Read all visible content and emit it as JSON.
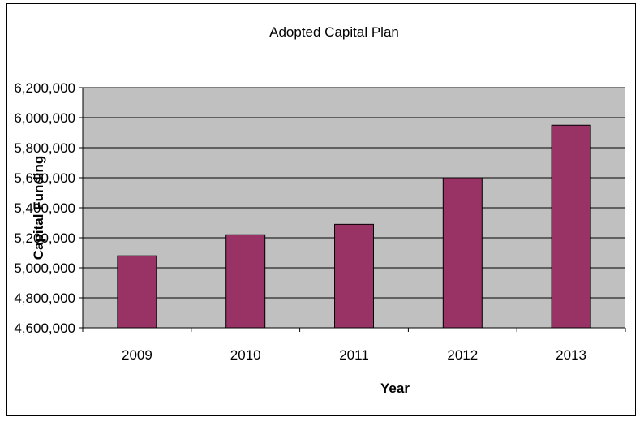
{
  "chart_data": {
    "type": "bar",
    "title": "Adopted Capital Plan",
    "xlabel": "Year",
    "ylabel": "Capital Funding",
    "categories": [
      "2009",
      "2010",
      "2011",
      "2012",
      "2013"
    ],
    "values": [
      5080000,
      5220000,
      5290000,
      5600000,
      5950000
    ],
    "ylim": [
      4600000,
      6200000
    ],
    "yticks": [
      "4,600,000",
      "4,800,000",
      "5,000,000",
      "5,200,000",
      "5,400,000",
      "5,600,000",
      "5,800,000",
      "6,000,000",
      "6,200,000"
    ],
    "ytick_values": [
      4600000,
      4800000,
      5000000,
      5200000,
      5400000,
      5600000,
      5800000,
      6000000,
      6200000
    ],
    "grid": true,
    "legend": false,
    "colors": {
      "bar": "#993366",
      "plot_background": "#c0c0c0",
      "gridline": "#000000"
    }
  }
}
